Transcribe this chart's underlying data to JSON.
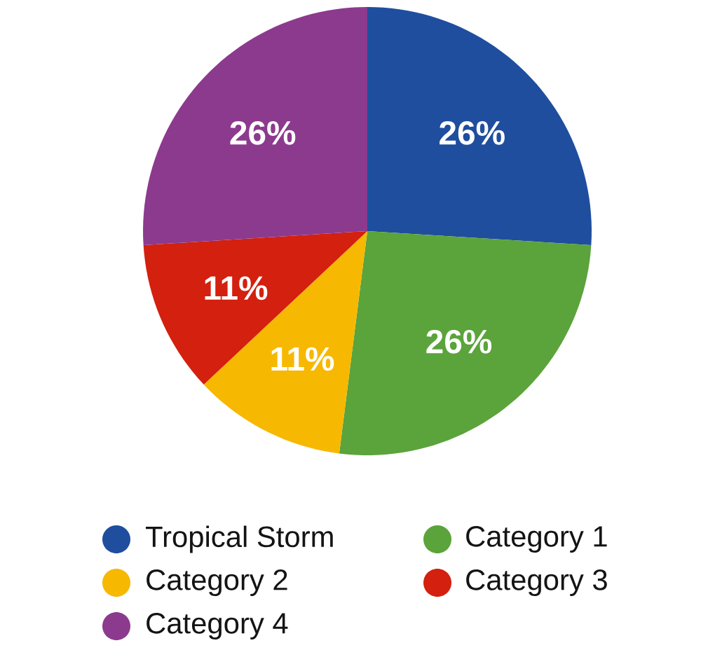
{
  "chart_data": {
    "type": "pie",
    "categories": [
      "Tropical Storm",
      "Category 1",
      "Category 2",
      "Category 3",
      "Category 4"
    ],
    "values": [
      26,
      26,
      11,
      11,
      26
    ],
    "value_labels": [
      "26%",
      "26%",
      "11%",
      "11%",
      "26%"
    ],
    "colors": [
      "#1f4e9e",
      "#5ba33b",
      "#f6b800",
      "#d3200f",
      "#8c3a8e"
    ],
    "legend": "bottom"
  }
}
